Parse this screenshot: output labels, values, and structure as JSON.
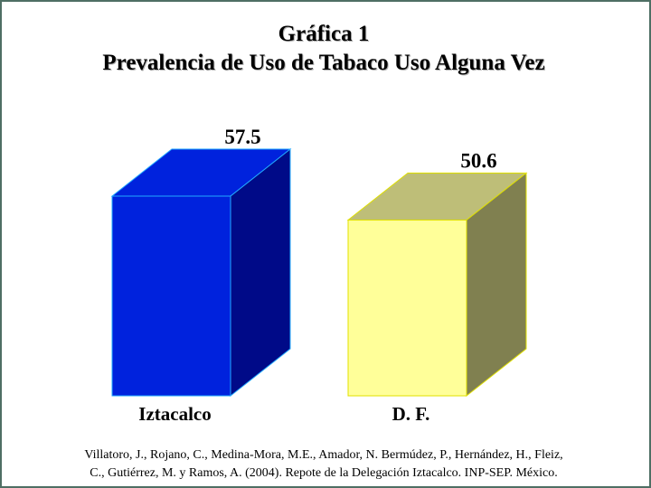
{
  "chart_data": {
    "type": "bar",
    "title": "Gráfica 1",
    "subtitle": "Prevalencia de Uso de Tabaco Uso Alguna Vez",
    "categories": [
      "Iztacalco",
      "D. F."
    ],
    "values": [
      57.5,
      50.6
    ],
    "value_labels": [
      "57.5",
      "50.6"
    ],
    "ylim": [
      0,
      57.5
    ],
    "grid": false,
    "legend": "none",
    "style": "3d-box",
    "colors": [
      {
        "front": "#0022dd",
        "side": "#000a88",
        "top": "#0022dd",
        "edge": "#22aaff"
      },
      {
        "front": "#ffff99",
        "side": "#808050",
        "top": "#bebe78",
        "edge": "#e0e000"
      }
    ]
  },
  "source": {
    "line1": "Villatoro, J., Rojano, C., Medina-Mora, M.E., Amador, N. Bermúdez, P., Hernández, H., Fleiz,",
    "line2": "C., Gutiérrez, M. y Ramos, A. (2004). Repote de la Delegación Iztacalco. INP-SEP. México."
  },
  "frame_color": "#4f6f64"
}
